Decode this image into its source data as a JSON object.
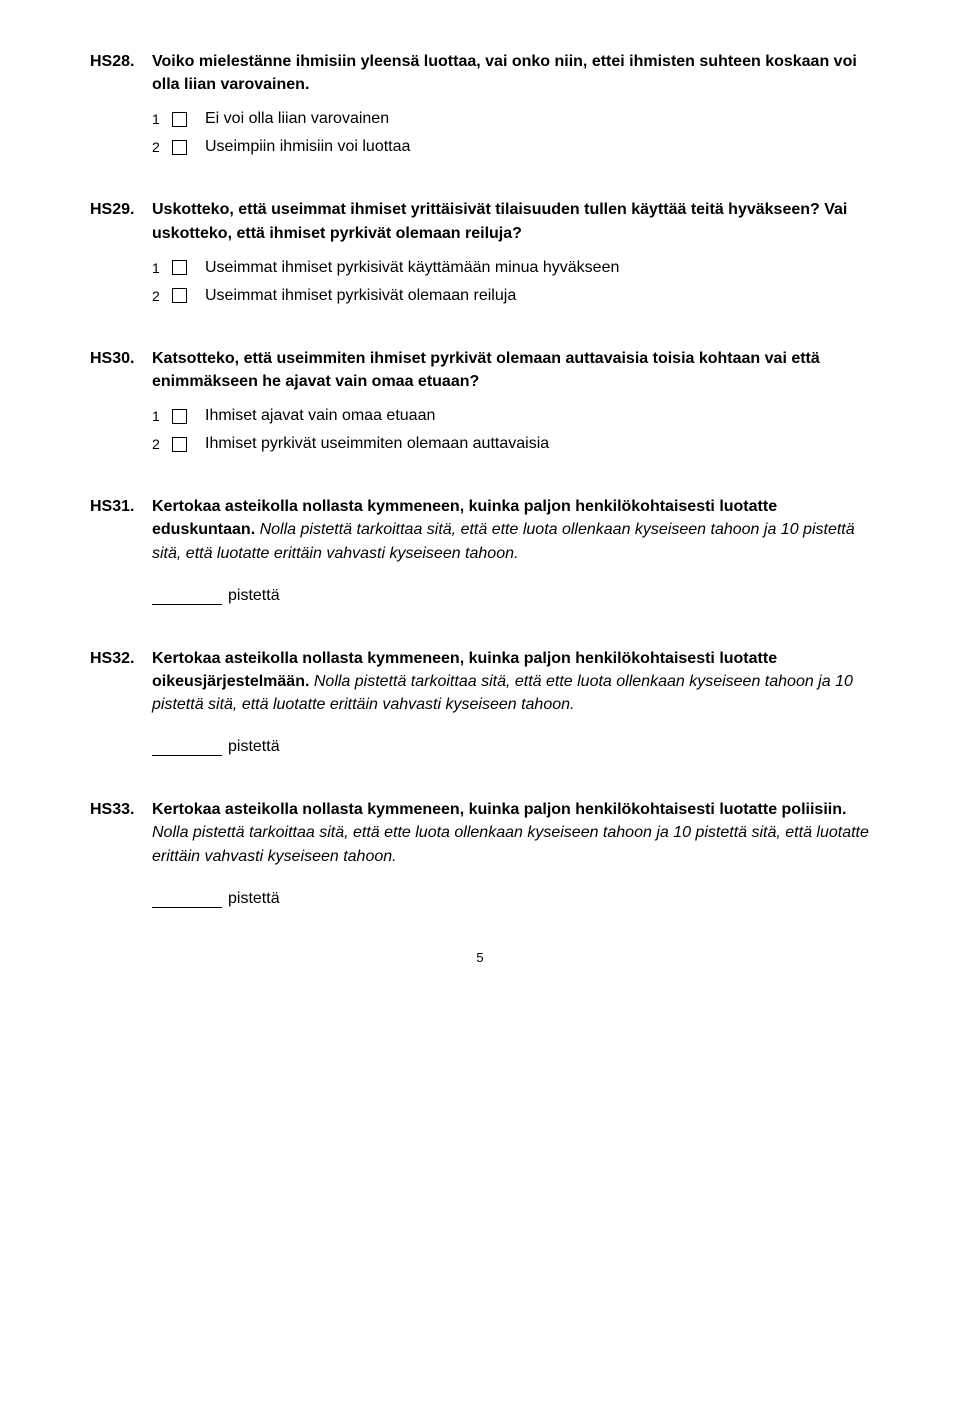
{
  "questions": [
    {
      "num": "HS28.",
      "bold_text": "Voiko mielestänne ihmisiin yleensä luottaa, vai onko niin, ettei ihmisten suhteen koskaan voi olla liian varovainen.",
      "options": [
        {
          "n": "1",
          "label": "Ei voi olla liian varovainen"
        },
        {
          "n": "2",
          "label": "Useimpiin ihmisiin voi luottaa"
        }
      ]
    },
    {
      "num": "HS29.",
      "bold_text": "Uskotteko, että useimmat ihmiset yrittäisivät tilaisuuden tullen käyttää teitä hyväkseen? Vai uskotteko, että ihmiset pyrkivät olemaan reiluja?",
      "options": [
        {
          "n": "1",
          "label": "Useimmat ihmiset pyrkisivät käyttämään minua hyväkseen"
        },
        {
          "n": "2",
          "label": "Useimmat ihmiset pyrkisivät olemaan reiluja"
        }
      ]
    },
    {
      "num": "HS30.",
      "bold_text": "Katsotteko, että useimmiten ihmiset pyrkivät olemaan auttavaisia toisia kohtaan vai että enimmäkseen he ajavat vain omaa etuaan?",
      "options": [
        {
          "n": "1",
          "label": "Ihmiset ajavat vain omaa etuaan"
        },
        {
          "n": "2",
          "label": "Ihmiset pyrkivät useimmiten olemaan auttavaisia"
        }
      ]
    },
    {
      "num": "HS31.",
      "bold_text": "Kertokaa asteikolla nollasta kymmeneen, kuinka paljon henkilökohtaisesti luotatte eduskuntaan.",
      "italic_text": " Nolla pistettä tarkoittaa sitä, että ette luota ollenkaan kyseiseen tahoon ja 10 pistettä sitä, että luotatte erittäin vahvasti kyseiseen tahoon.",
      "answer_label": "pistettä"
    },
    {
      "num": "HS32.",
      "bold_text": "Kertokaa asteikolla nollasta kymmeneen, kuinka paljon henkilökohtaisesti luotatte oikeusjärjestelmään.",
      "italic_text": " Nolla pistettä tarkoittaa sitä, että ette luota ollenkaan kyseiseen tahoon ja 10 pistettä sitä, että luotatte erittäin vahvasti kyseiseen tahoon.",
      "answer_label": "pistettä"
    },
    {
      "num": "HS33.",
      "bold_text": "Kertokaa asteikolla nollasta kymmeneen, kuinka paljon henkilökohtaisesti luotatte poliisiin.",
      "italic_text": " Nolla pistettä tarkoittaa sitä, että ette luota ollenkaan kyseiseen tahoon ja 10 pistettä sitä, että luotatte erittäin vahvasti kyseiseen tahoon.",
      "answer_label": "pistettä"
    }
  ],
  "page_number": "5"
}
